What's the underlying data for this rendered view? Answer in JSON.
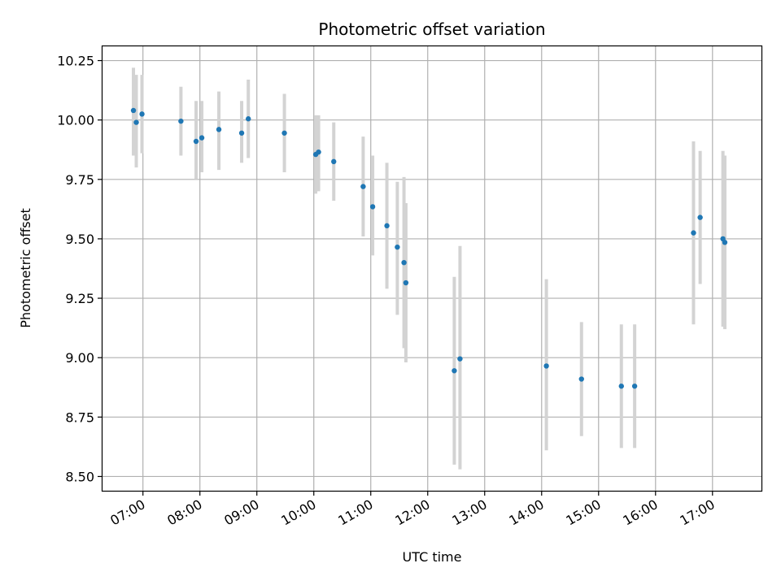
{
  "chart_data": {
    "type": "scatter",
    "title": "Photometric offset variation",
    "xlabel": "UTC time",
    "ylabel": "Photometric offset",
    "xlim_hours": [
      6.29,
      17.86
    ],
    "ylim": [
      8.44,
      10.31
    ],
    "grid": true,
    "x_ticks": [
      "07:00",
      "08:00",
      "09:00",
      "10:00",
      "11:00",
      "12:00",
      "13:00",
      "14:00",
      "15:00",
      "16:00",
      "17:00"
    ],
    "y_ticks": [
      "8.50",
      "8.75",
      "9.00",
      "9.25",
      "9.50",
      "9.75",
      "10.00",
      "10.25"
    ],
    "colors": {
      "point": "#1f77b4",
      "errorbar": "#d3d3d3",
      "grid": "#b0b0b0"
    },
    "series": [
      {
        "points": [
          {
            "x": "06:50",
            "y": 10.04,
            "lo": 9.85,
            "hi": 10.22
          },
          {
            "x": "06:53",
            "y": 9.99,
            "lo": 9.8,
            "hi": 10.19
          },
          {
            "x": "06:59",
            "y": 10.025,
            "lo": 9.86,
            "hi": 10.19
          },
          {
            "x": "07:40",
            "y": 9.995,
            "lo": 9.85,
            "hi": 10.14
          },
          {
            "x": "07:56",
            "y": 9.91,
            "lo": 9.75,
            "hi": 10.08
          },
          {
            "x": "08:02",
            "y": 9.925,
            "lo": 9.78,
            "hi": 10.08
          },
          {
            "x": "08:20",
            "y": 9.96,
            "lo": 9.79,
            "hi": 10.12
          },
          {
            "x": "08:44",
            "y": 9.945,
            "lo": 9.82,
            "hi": 10.08
          },
          {
            "x": "08:51",
            "y": 10.005,
            "lo": 9.84,
            "hi": 10.17
          },
          {
            "x": "09:29",
            "y": 9.945,
            "lo": 9.78,
            "hi": 10.11
          },
          {
            "x": "10:02",
            "y": 9.855,
            "lo": 9.69,
            "hi": 10.02
          },
          {
            "x": "10:05",
            "y": 9.865,
            "lo": 9.7,
            "hi": 10.02
          },
          {
            "x": "10:21",
            "y": 9.825,
            "lo": 9.66,
            "hi": 9.99
          },
          {
            "x": "10:52",
            "y": 9.72,
            "lo": 9.51,
            "hi": 9.93
          },
          {
            "x": "11:02",
            "y": 9.635,
            "lo": 9.43,
            "hi": 9.85
          },
          {
            "x": "11:17",
            "y": 9.555,
            "lo": 9.29,
            "hi": 9.82
          },
          {
            "x": "11:28",
            "y": 9.465,
            "lo": 9.18,
            "hi": 9.74
          },
          {
            "x": "11:35",
            "y": 9.4,
            "lo": 9.04,
            "hi": 9.76
          },
          {
            "x": "11:37",
            "y": 9.315,
            "lo": 8.98,
            "hi": 9.65
          },
          {
            "x": "12:28",
            "y": 8.945,
            "lo": 8.55,
            "hi": 9.34
          },
          {
            "x": "12:34",
            "y": 8.995,
            "lo": 8.53,
            "hi": 9.47
          },
          {
            "x": "14:05",
            "y": 8.965,
            "lo": 8.61,
            "hi": 9.33
          },
          {
            "x": "14:42",
            "y": 8.91,
            "lo": 8.67,
            "hi": 9.15
          },
          {
            "x": "15:24",
            "y": 8.88,
            "lo": 8.62,
            "hi": 9.14
          },
          {
            "x": "15:38",
            "y": 8.88,
            "lo": 8.62,
            "hi": 9.14
          },
          {
            "x": "16:40",
            "y": 9.525,
            "lo": 9.14,
            "hi": 9.91
          },
          {
            "x": "16:47",
            "y": 9.59,
            "lo": 9.31,
            "hi": 9.87
          },
          {
            "x": "17:11",
            "y": 9.5,
            "lo": 9.13,
            "hi": 9.87
          },
          {
            "x": "17:13",
            "y": 9.485,
            "lo": 9.12,
            "hi": 9.85
          }
        ]
      }
    ]
  }
}
